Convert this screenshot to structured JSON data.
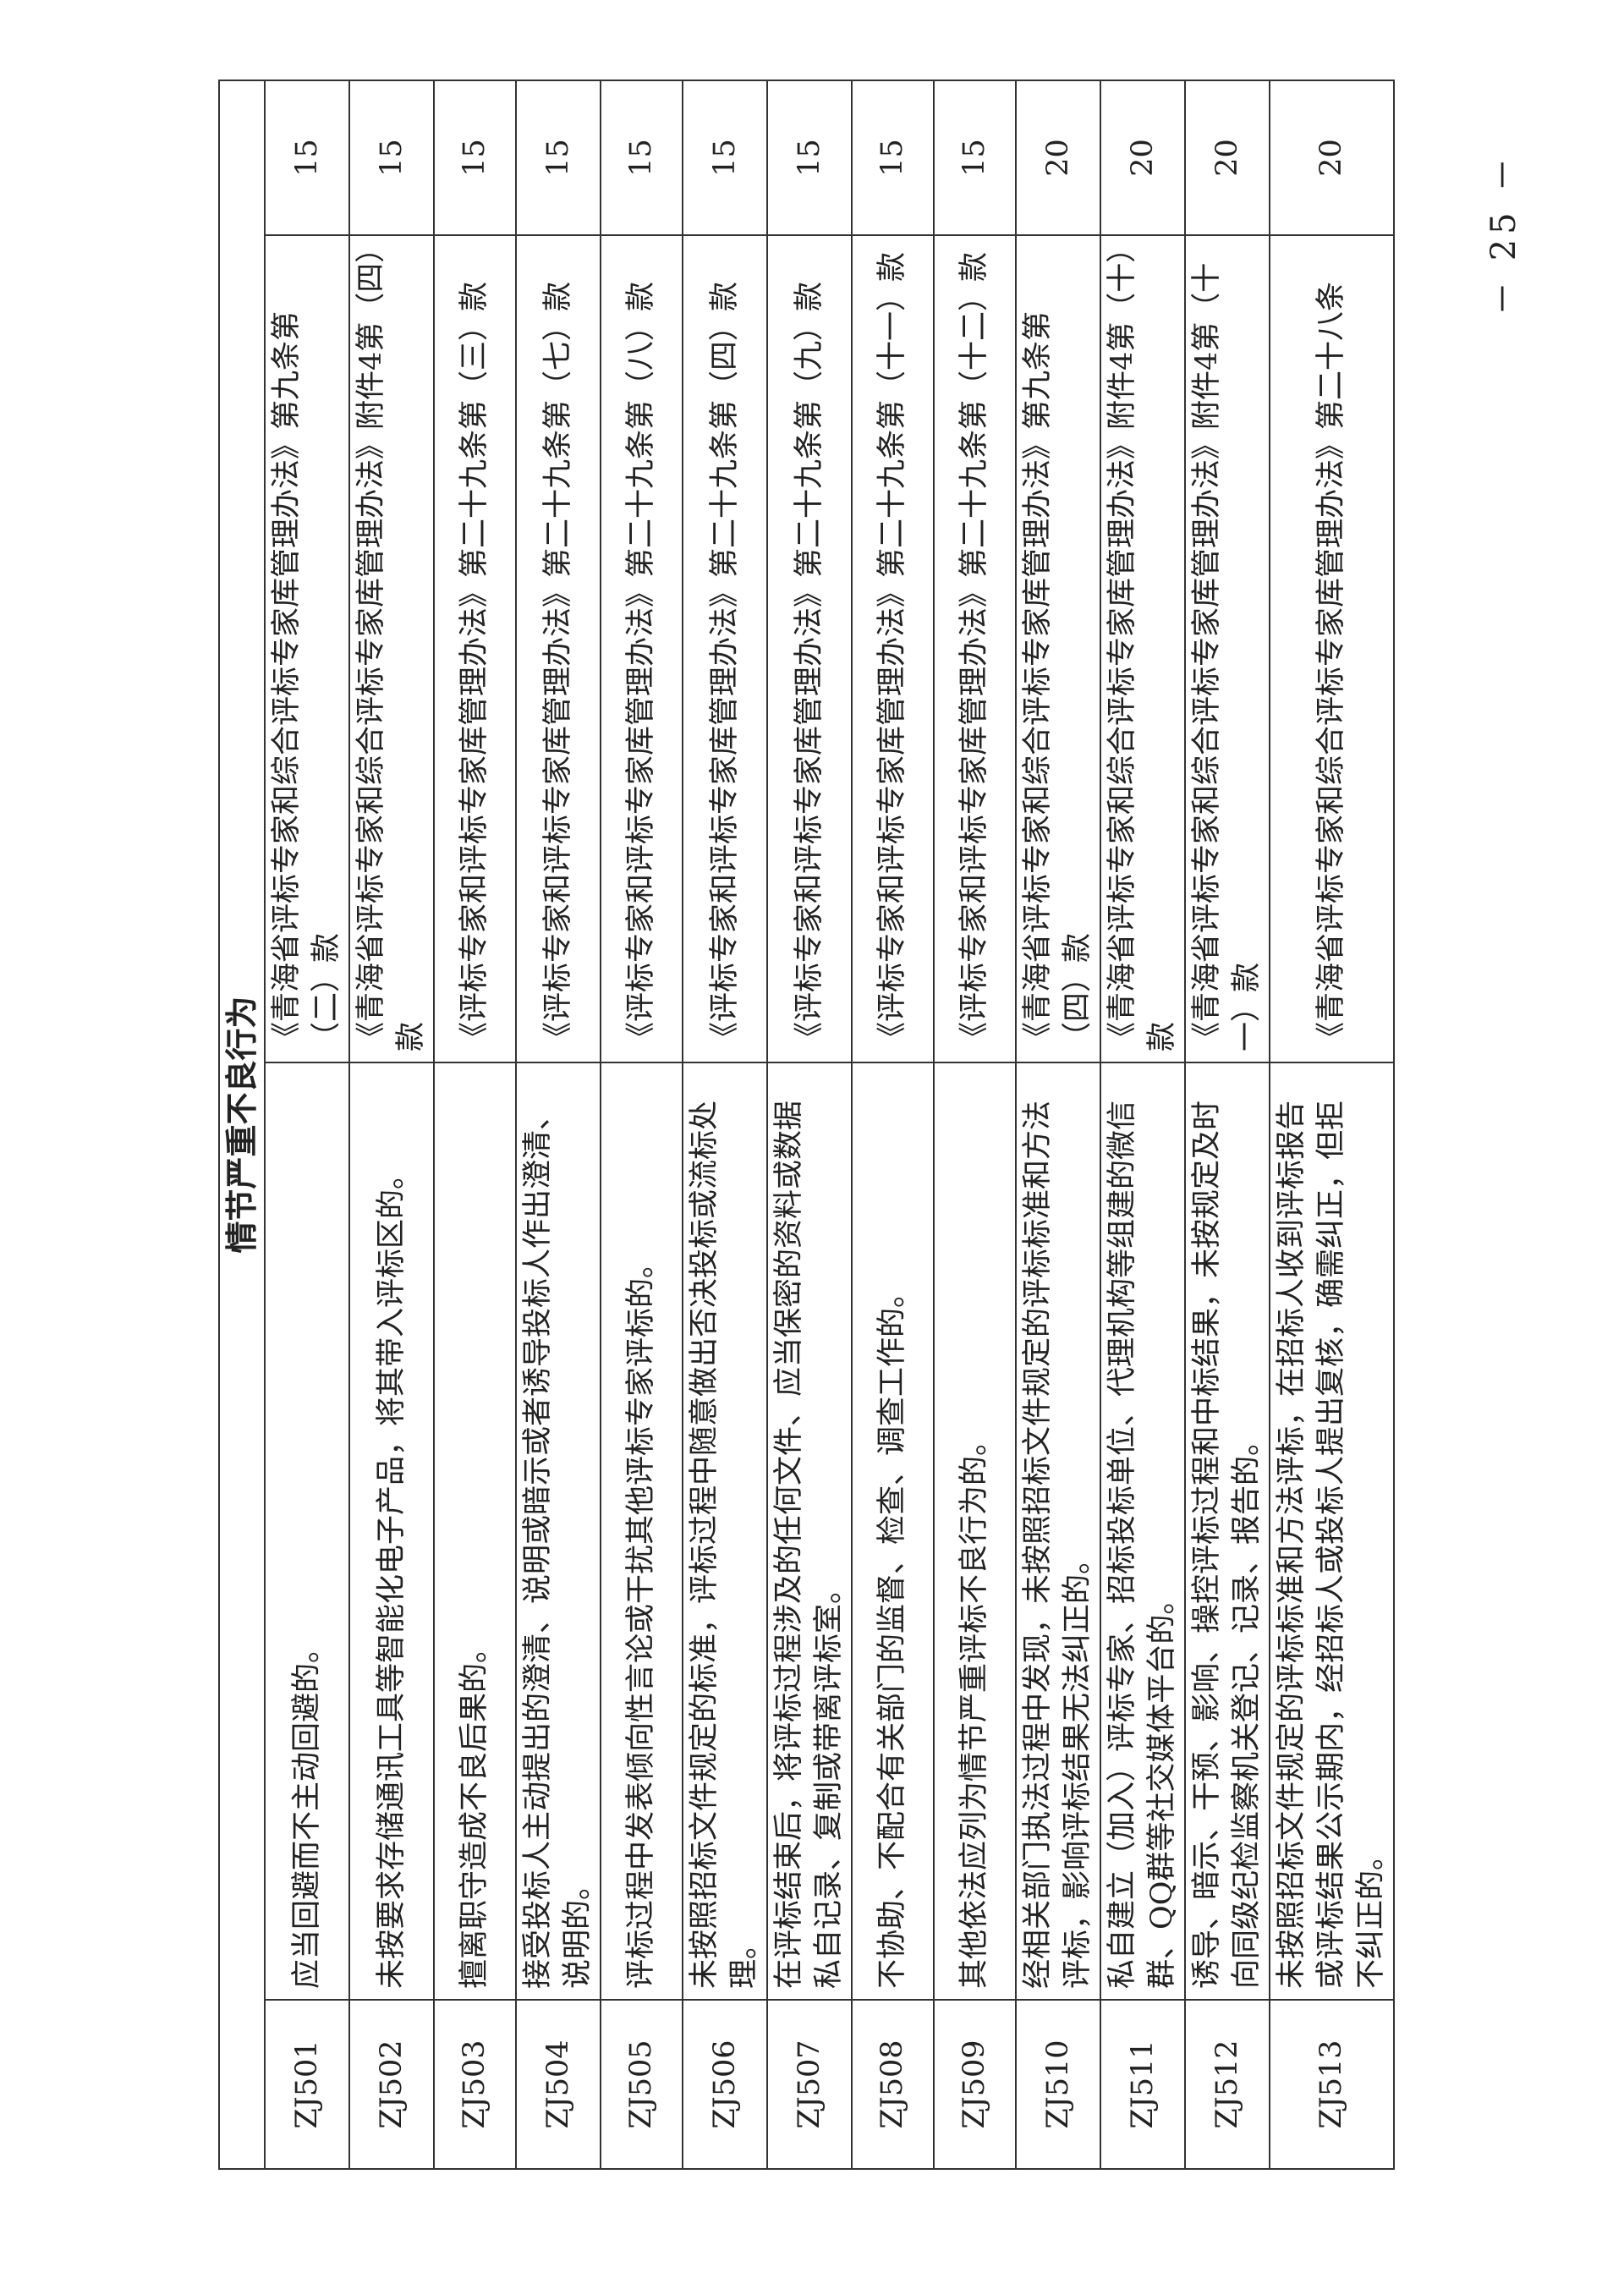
{
  "header": {
    "title": "情节严重不良行为"
  },
  "table": {
    "rows": [
      [
        "ZJ501",
        "应当回避而不主动回避的。",
        "《青海省评标专家和综合评标专家库管理办法》第九条第（二）款",
        "15"
      ],
      [
        "ZJ502",
        "未按要求存储通讯工具等智能化电子产品，将其带入评标区的。",
        "《青海省评标专家和综合评标专家库管理办法》附件4第（四）款",
        "15"
      ],
      [
        "ZJ503",
        "擅离职守造成不良后果的。",
        "《评标专家和评标专家库管理办法》第二十九条第（三）款",
        "15"
      ],
      [
        "ZJ504",
        "接受投标人主动提出的澄清、说明或暗示或者诱导投标人作出澄清、说明的。",
        "《评标专家和评标专家库管理办法》第二十九条第（七）款",
        "15"
      ],
      [
        "ZJ505",
        "评标过程中发表倾向性言论或干扰其他评标专家评标的。",
        "《评标专家和评标专家库管理办法》第二十九条第（八）款",
        "15"
      ],
      [
        "ZJ506",
        "未按照招标文件规定的标准，评标过程中随意做出否决投标或流标处理。",
        "《评标专家和评标专家库管理办法》第二十九条第（四）款",
        "15"
      ],
      [
        "ZJ507",
        "在评标结束后，将评标过程涉及的任何文件、应当保密的资料或数据私自记录、复制或带离评标室。",
        "《评标专家和评标专家库管理办法》第二十九条第（九）款",
        "15"
      ],
      [
        "ZJ508",
        "不协助、不配合有关部门的监督、检查、调查工作的。",
        "《评标专家和评标专家库管理办法》第二十九条第（十一）款",
        "15"
      ],
      [
        "ZJ509",
        "其他依法应列为情节严重评标不良行为的。",
        "《评标专家和评标专家库管理办法》第二十九条第（十二）款",
        "15"
      ],
      [
        "ZJ510",
        "经相关部门执法过程中发现，未按照招标文件规定的评标标准和方法评标，影响评标结果无法纠正的。",
        "《青海省评标专家和综合评标专家库管理办法》第九条第（四）款",
        "20"
      ],
      [
        "ZJ511",
        "私自建立（加入）评标专家、招标投标单位、代理机构等组建的微信群、QQ群等社交媒体平台的。",
        "《青海省评标专家和综合评标专家库管理办法》附件4第（十）款",
        "20"
      ],
      [
        "ZJ512",
        "诱导、暗示、干预、影响、操控评标过程和中标结果，未按规定及时向同级纪检监察机关登记、记录、报告的。",
        "《青海省评标专家和综合评标专家库管理办法》附件4第（十一）款",
        "20"
      ],
      [
        "ZJ513",
        "未按照招标文件规定的评标标准和方法评标，在招标人收到评标报告或评标结果公示期内，经招标人或投标人提出复核，确需纠正，但拒不纠正的。",
        "《青海省评标专家和综合评标专家库管理办法》第二十八条",
        "20"
      ]
    ]
  },
  "footer": {
    "page_number": "－ 25 －"
  }
}
